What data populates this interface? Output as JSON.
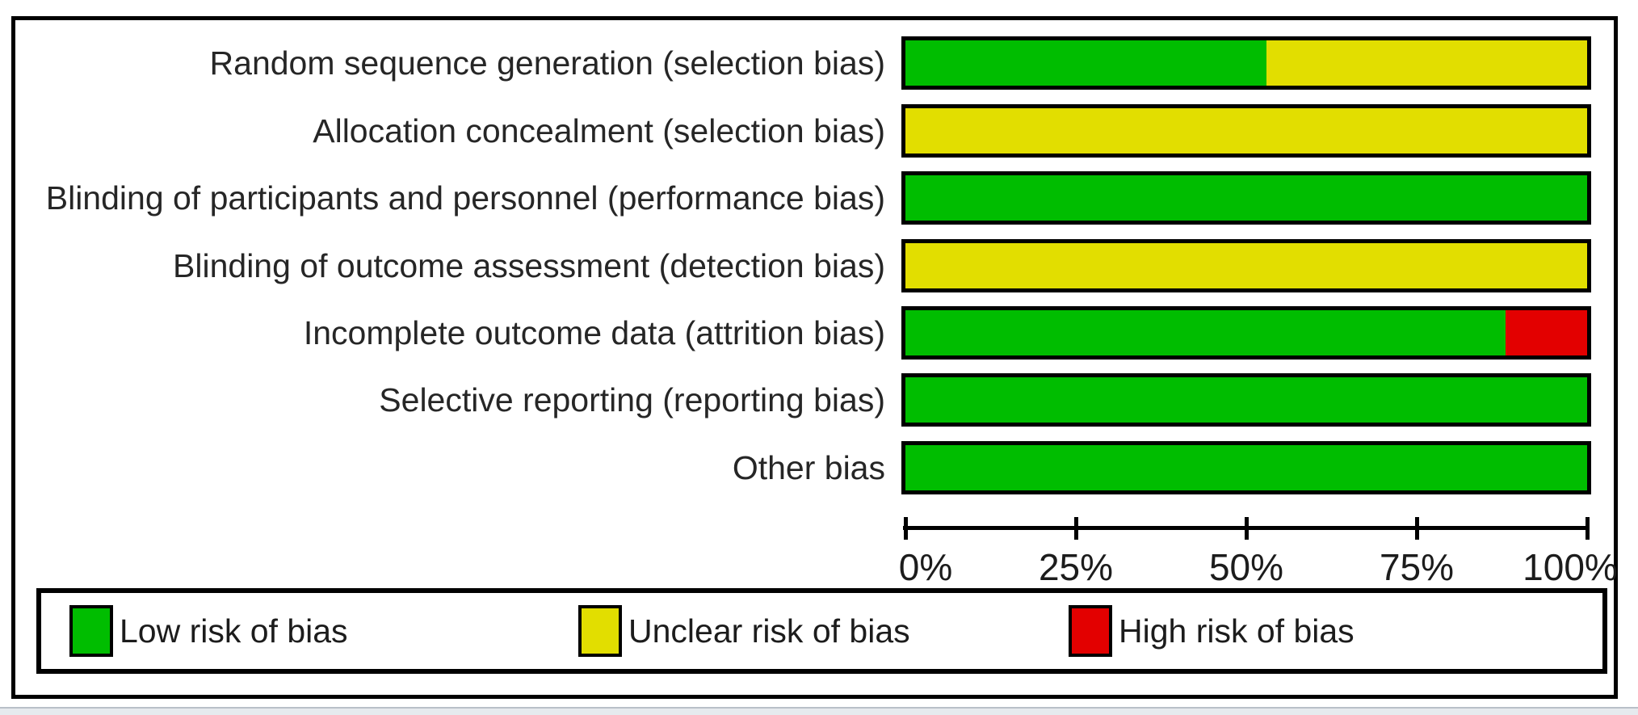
{
  "chart_data": {
    "type": "bar",
    "subtype": "horizontal-stacked-percentage",
    "title": "",
    "xlabel": "",
    "ylabel": "",
    "xlim": [
      0,
      100
    ],
    "x_ticks": [
      "0%",
      "25%",
      "50%",
      "75%",
      "100%"
    ],
    "grid": false,
    "legend_position": "bottom",
    "categories": [
      "Random sequence generation (selection bias)",
      "Allocation concealment (selection bias)",
      "Blinding of participants and personnel (performance bias)",
      "Blinding of outcome assessment (detection bias)",
      "Incomplete outcome data (attrition bias)",
      "Selective reporting (reporting bias)",
      "Other bias"
    ],
    "series": [
      {
        "name": "Low risk of bias",
        "color": "#00bd00",
        "values": [
          53,
          0,
          100,
          0,
          88,
          100,
          100
        ]
      },
      {
        "name": "Unclear risk of bias",
        "color": "#e2de00",
        "values": [
          47,
          100,
          0,
          100,
          0,
          0,
          0
        ]
      },
      {
        "name": "High risk of bias",
        "color": "#e30000",
        "values": [
          0,
          0,
          0,
          0,
          12,
          0,
          0
        ]
      }
    ]
  },
  "colors": {
    "border": "#000000",
    "text": "#262626",
    "background": "#ffffff",
    "window_edge": "#e6eaee"
  }
}
